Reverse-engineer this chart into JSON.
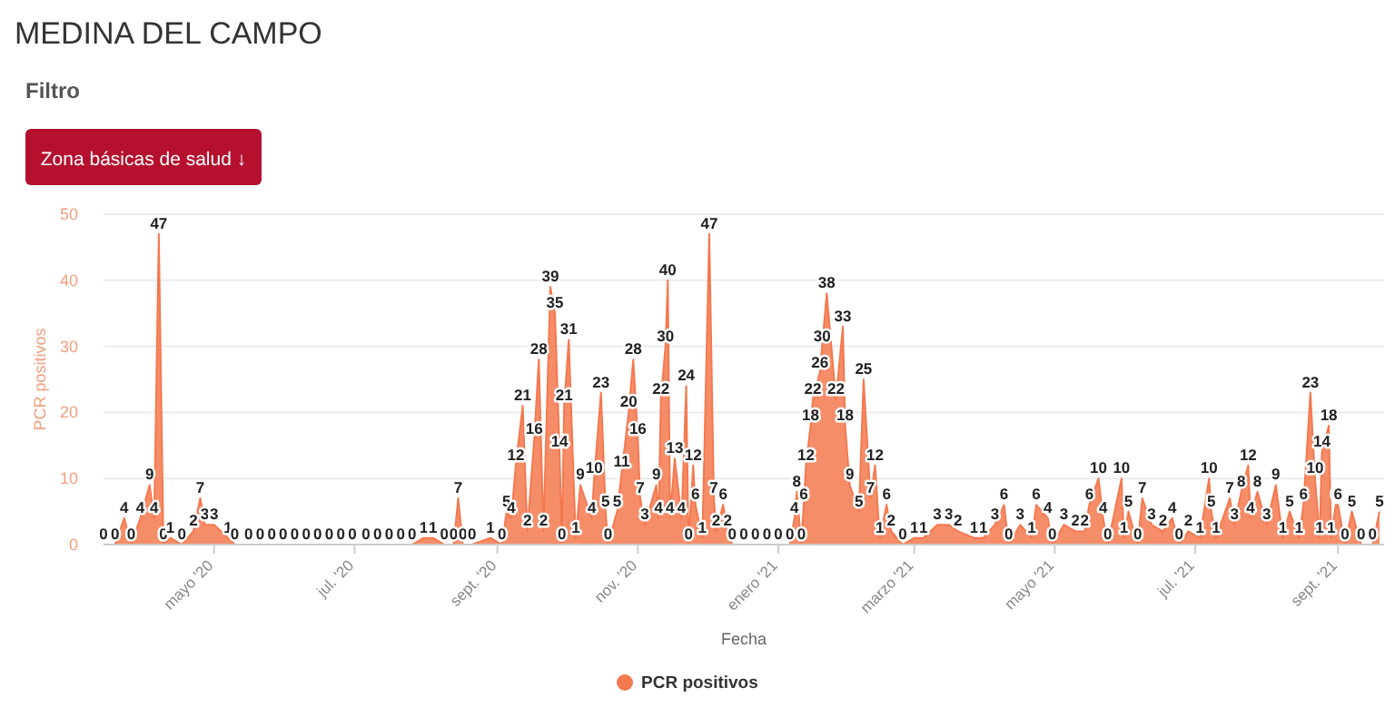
{
  "chart_data": {
    "type": "area",
    "title": "MEDINA DEL CAMPO",
    "subtitle": "Filtro",
    "annotations": [
      "Zona básicas de salud ↓"
    ],
    "xlabel": "Fecha",
    "ylabel": "PCR positivos",
    "xlim": [
      "2020-03-14",
      "2021-09-21"
    ],
    "ylim": [
      0,
      50
    ],
    "yticks": [
      0,
      10,
      20,
      30,
      40,
      50
    ],
    "xticks": [
      {
        "value": "2020-05-01",
        "label": "mayo '20"
      },
      {
        "value": "2020-07-01",
        "label": "jul. '20"
      },
      {
        "value": "2020-09-01",
        "label": "sept. '20"
      },
      {
        "value": "2020-11-01",
        "label": "nov. '20"
      },
      {
        "value": "2021-01-01",
        "label": "enero '21"
      },
      {
        "value": "2021-03-01",
        "label": "marzo '21"
      },
      {
        "value": "2021-05-01",
        "label": "mayo '21"
      },
      {
        "value": "2021-07-01",
        "label": "jul. '21"
      },
      {
        "value": "2021-09-01",
        "label": "sept. '21"
      }
    ],
    "grid": "y",
    "legend": "bottom",
    "data_labels": true,
    "x": [
      "2020-03-14",
      "2020-03-19",
      "2020-03-23",
      "2020-03-26",
      "2020-03-30",
      "2020-04-03",
      "2020-04-05",
      "2020-04-07",
      "2020-04-09",
      "2020-04-12",
      "2020-04-17",
      "2020-04-22",
      "2020-04-25",
      "2020-04-27",
      "2020-05-01",
      "2020-05-07",
      "2020-05-10",
      "2020-05-16",
      "2020-05-21",
      "2020-05-26",
      "2020-05-31",
      "2020-06-05",
      "2020-06-10",
      "2020-06-15",
      "2020-06-20",
      "2020-06-25",
      "2020-06-30",
      "2020-07-06",
      "2020-07-11",
      "2020-07-16",
      "2020-07-21",
      "2020-07-26",
      "2020-07-31",
      "2020-08-04",
      "2020-08-09",
      "2020-08-13",
      "2020-08-15",
      "2020-08-17",
      "2020-08-21",
      "2020-08-29",
      "2020-09-03",
      "2020-09-05",
      "2020-09-07",
      "2020-09-09",
      "2020-09-12",
      "2020-09-14",
      "2020-09-17",
      "2020-09-19",
      "2020-09-21",
      "2020-09-24",
      "2020-09-26",
      "2020-09-28",
      "2020-09-29",
      "2020-09-30",
      "2020-10-02",
      "2020-10-05",
      "2020-10-07",
      "2020-10-12",
      "2020-10-13",
      "2020-10-16",
      "2020-10-18",
      "2020-10-19",
      "2020-10-23",
      "2020-10-25",
      "2020-10-28",
      "2020-10-30",
      "2020-11-01",
      "2020-11-02",
      "2020-11-04",
      "2020-11-09",
      "2020-11-10",
      "2020-11-11",
      "2020-11-13",
      "2020-11-14",
      "2020-11-15",
      "2020-11-17",
      "2020-11-20",
      "2020-11-22",
      "2020-11-23",
      "2020-11-25",
      "2020-11-26",
      "2020-11-29",
      "2020-12-02",
      "2020-12-04",
      "2020-12-05",
      "2020-12-08",
      "2020-12-10",
      "2020-12-12",
      "2020-12-17",
      "2020-12-22",
      "2020-12-27",
      "2021-01-01",
      "2021-01-06",
      "2021-01-08",
      "2021-01-09",
      "2021-01-11",
      "2021-01-12",
      "2021-01-13",
      "2021-01-15",
      "2021-01-16",
      "2021-01-19",
      "2021-01-20",
      "2021-01-22",
      "2021-01-26",
      "2021-01-29",
      "2021-01-30",
      "2021-02-01",
      "2021-02-05",
      "2021-02-07",
      "2021-02-10",
      "2021-02-12",
      "2021-02-14",
      "2021-02-17",
      "2021-02-19",
      "2021-02-24",
      "2021-03-01",
      "2021-03-05",
      "2021-03-11",
      "2021-03-16",
      "2021-03-20",
      "2021-03-27",
      "2021-03-31",
      "2021-04-05",
      "2021-04-09",
      "2021-04-11",
      "2021-04-16",
      "2021-04-21",
      "2021-04-23",
      "2021-04-28",
      "2021-04-30",
      "2021-05-05",
      "2021-05-10",
      "2021-05-14",
      "2021-05-16",
      "2021-05-20",
      "2021-05-22",
      "2021-05-24",
      "2021-05-30",
      "2021-05-31",
      "2021-06-02",
      "2021-06-06",
      "2021-06-08",
      "2021-06-12",
      "2021-06-17",
      "2021-06-21",
      "2021-06-24",
      "2021-06-28",
      "2021-07-03",
      "2021-07-07",
      "2021-07-08",
      "2021-07-10",
      "2021-07-16",
      "2021-07-18",
      "2021-07-21",
      "2021-07-24",
      "2021-07-25",
      "2021-07-28",
      "2021-08-01",
      "2021-08-05",
      "2021-08-08",
      "2021-08-11",
      "2021-08-15",
      "2021-08-17",
      "2021-08-20",
      "2021-08-22",
      "2021-08-24",
      "2021-08-25",
      "2021-08-28",
      "2021-08-29",
      "2021-08-31",
      "2021-09-01",
      "2021-09-04",
      "2021-09-07",
      "2021-09-11",
      "2021-09-16",
      "2021-09-19"
    ],
    "series": [
      {
        "name": "PCR positivos",
        "color": "#f4794f",
        "values": [
          0,
          0,
          4,
          0,
          4,
          9,
          4,
          47,
          0,
          1,
          0,
          2,
          7,
          3,
          3,
          1,
          0,
          0,
          0,
          0,
          0,
          0,
          0,
          0,
          0,
          0,
          0,
          0,
          0,
          0,
          0,
          0,
          1,
          1,
          0,
          0,
          7,
          0,
          0,
          1,
          0,
          5,
          4,
          12,
          21,
          2,
          16,
          28,
          2,
          39,
          35,
          14,
          0,
          21,
          31,
          1,
          9,
          4,
          10,
          23,
          5,
          0,
          5,
          11,
          20,
          28,
          16,
          7,
          3,
          9,
          4,
          22,
          30,
          40,
          4,
          13,
          4,
          24,
          0,
          12,
          6,
          1,
          47,
          7,
          2,
          6,
          2,
          0,
          0,
          0,
          0,
          0,
          0,
          4,
          8,
          0,
          6,
          12,
          18,
          22,
          26,
          30,
          38,
          22,
          33,
          18,
          9,
          5,
          25,
          7,
          12,
          1,
          6,
          2,
          0,
          1,
          1,
          3,
          3,
          2,
          1,
          1,
          3,
          6,
          0,
          3,
          1,
          6,
          4,
          0,
          3,
          2,
          2,
          6,
          10,
          4,
          0,
          10,
          1,
          5,
          0,
          7,
          3,
          2,
          4,
          0,
          2,
          1,
          10,
          5,
          1,
          7,
          3,
          8,
          12,
          4,
          8,
          3,
          9,
          1,
          5,
          1,
          6,
          23,
          10,
          1,
          14,
          18,
          1,
          6,
          6,
          0,
          5,
          0,
          0,
          5
        ]
      }
    ]
  }
}
